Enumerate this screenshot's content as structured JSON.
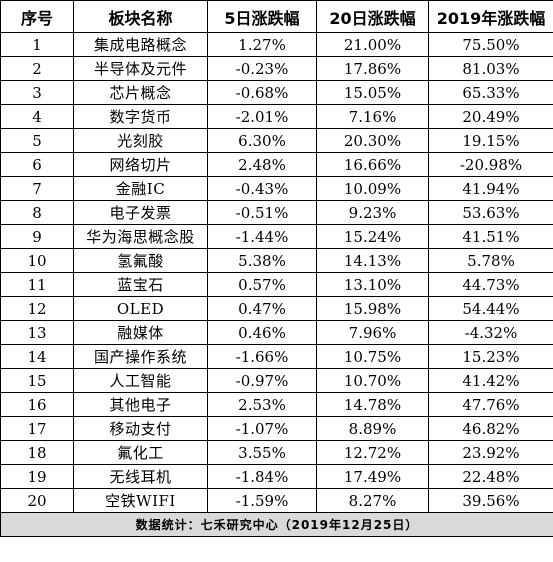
{
  "headers": [
    "序号",
    "板块名称",
    "5日涨跌幅",
    "20日涨跌幅",
    "2019年涨跌幅"
  ],
  "rows": [
    {
      "idx": "1",
      "name": "集成电路概念",
      "d5": "1.27%",
      "d20": "21.00%",
      "y2019": "75.50%"
    },
    {
      "idx": "2",
      "name": "半导体及元件",
      "d5": "-0.23%",
      "d20": "17.86%",
      "y2019": "81.03%"
    },
    {
      "idx": "3",
      "name": "芯片概念",
      "d5": "-0.68%",
      "d20": "15.05%",
      "y2019": "65.33%"
    },
    {
      "idx": "4",
      "name": "数字货币",
      "d5": "-2.01%",
      "d20": "7.16%",
      "y2019": "20.49%"
    },
    {
      "idx": "5",
      "name": "光刻胶",
      "d5": "6.30%",
      "d20": "20.30%",
      "y2019": "19.15%"
    },
    {
      "idx": "6",
      "name": "网络切片",
      "d5": "2.48%",
      "d20": "16.66%",
      "y2019": "-20.98%"
    },
    {
      "idx": "7",
      "name": "金融IC",
      "d5": "-0.43%",
      "d20": "10.09%",
      "y2019": "41.94%"
    },
    {
      "idx": "8",
      "name": "电子发票",
      "d5": "-0.51%",
      "d20": "9.23%",
      "y2019": "53.63%"
    },
    {
      "idx": "9",
      "name": "华为海思概念股",
      "d5": "-1.44%",
      "d20": "15.24%",
      "y2019": "41.51%"
    },
    {
      "idx": "10",
      "name": "氢氟酸",
      "d5": "5.38%",
      "d20": "14.13%",
      "y2019": "5.78%"
    },
    {
      "idx": "11",
      "name": "蓝宝石",
      "d5": "0.57%",
      "d20": "13.10%",
      "y2019": "44.73%"
    },
    {
      "idx": "12",
      "name": "OLED",
      "d5": "0.47%",
      "d20": "15.98%",
      "y2019": "54.44%"
    },
    {
      "idx": "13",
      "name": "融媒体",
      "d5": "0.46%",
      "d20": "7.96%",
      "y2019": "-4.32%"
    },
    {
      "idx": "14",
      "name": "国产操作系统",
      "d5": "-1.66%",
      "d20": "10.75%",
      "y2019": "15.23%"
    },
    {
      "idx": "15",
      "name": "人工智能",
      "d5": "-0.97%",
      "d20": "10.70%",
      "y2019": "41.42%"
    },
    {
      "idx": "16",
      "name": "其他电子",
      "d5": "2.53%",
      "d20": "14.78%",
      "y2019": "47.76%"
    },
    {
      "idx": "17",
      "name": "移动支付",
      "d5": "-1.07%",
      "d20": "8.89%",
      "y2019": "46.82%"
    },
    {
      "idx": "18",
      "name": "氟化工",
      "d5": "3.55%",
      "d20": "12.72%",
      "y2019": "23.92%"
    },
    {
      "idx": "19",
      "name": "无线耳机",
      "d5": "-1.84%",
      "d20": "17.49%",
      "y2019": "22.48%"
    },
    {
      "idx": "20",
      "name": "空铁WIFI",
      "d5": "-1.59%",
      "d20": "8.27%",
      "y2019": "39.56%"
    }
  ],
  "footer": "数据统计：七禾研究中心（2019年12月25日）"
}
